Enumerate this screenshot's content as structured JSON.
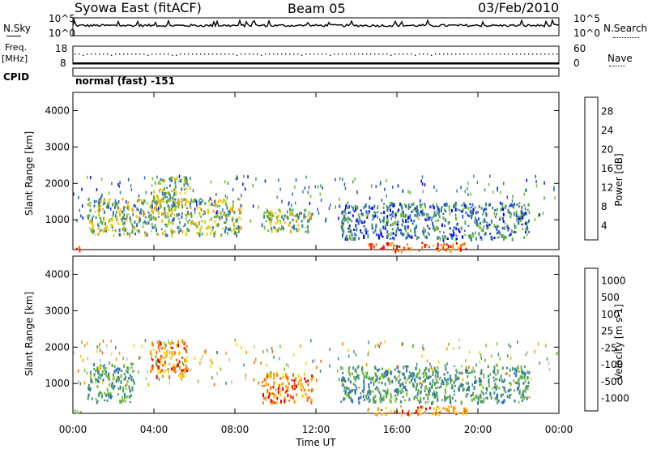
{
  "header": {
    "station": "Syowa East (fitACF)",
    "beam": "Beam 05",
    "date": "03/Feb/2010"
  },
  "summary": {
    "nsky_label": "N.Sky",
    "nsearch_label": "N.Search",
    "nsky_ticks": [
      "10^5",
      "10^0"
    ],
    "freq_label": "Freq.",
    "freq_unit": "[MHz]",
    "freq_ticks": [
      "18",
      "8"
    ],
    "nave_label": "Nave",
    "nave_ticks": [
      "60",
      "0"
    ],
    "cpid_label": "CPID",
    "cpid_value": "normal (fast) -151"
  },
  "chart_data": [
    {
      "type": "heatmap",
      "panel": "power",
      "ylabel": "Slant Range [km]",
      "ylim": [
        180,
        4500
      ],
      "yticks": [
        "4000",
        "3000",
        "2000",
        "1000"
      ],
      "xlim": [
        "00:00",
        "24:00"
      ],
      "colorbar_label": "Power [dB]",
      "colorbar_ticks": [
        "28",
        "24",
        "20",
        "16",
        "12",
        "8",
        "4"
      ],
      "colorbar_colors": [
        "#0000ff",
        "#2050e0",
        "#2e6db5",
        "#3c8a86",
        "#46a04a",
        "#6fc12a",
        "#c8d800",
        "#ffc400",
        "#ff9a00",
        "#ff6a00",
        "#ff2a00",
        "#e60000"
      ],
      "echo_regions": [
        {
          "t_start": 0.0,
          "t_end": 0.5,
          "r_min": 180,
          "r_max": 300,
          "level": "high"
        },
        {
          "t_start": 0.7,
          "t_end": 8.3,
          "r_min": 600,
          "r_max": 1600,
          "level": "medium"
        },
        {
          "t_start": 3.8,
          "t_end": 5.6,
          "r_min": 1300,
          "r_max": 2200,
          "level": "medium"
        },
        {
          "t_start": 9.3,
          "t_end": 11.8,
          "r_min": 700,
          "r_max": 1300,
          "level": "medium"
        },
        {
          "t_start": 13.2,
          "t_end": 22.5,
          "r_min": 500,
          "r_max": 1500,
          "level": "low"
        },
        {
          "t_start": 14.5,
          "t_end": 19.5,
          "r_min": 180,
          "r_max": 400,
          "level": "high"
        }
      ]
    },
    {
      "type": "heatmap",
      "panel": "velocity",
      "ylabel": "Slant Range [km]",
      "ylim": [
        180,
        4500
      ],
      "yticks": [
        "4000",
        "3000",
        "2000",
        "1000"
      ],
      "xlim": [
        "00:00",
        "24:00"
      ],
      "xlabel": "Time UT",
      "xticks": [
        "00:00",
        "04:00",
        "08:00",
        "12:00",
        "16:00",
        "20:00",
        "00:00"
      ],
      "colorbar_label": "Velocity [m s-1]",
      "colorbar_ticks": [
        "1000",
        "500",
        "100",
        "25",
        "-25",
        "-100",
        "-500",
        "-1000"
      ],
      "colorbar_colors": [
        "#1f3fbf",
        "#2e6db5",
        "#3c8a86",
        "#46a04a",
        "#6fc12a",
        "#b8b8b8",
        "#ffd000",
        "#ff9a00",
        "#ff6a00",
        "#e60000"
      ],
      "echo_regions": [
        {
          "t_start": 0.0,
          "t_end": 0.5,
          "r_min": 180,
          "r_max": 300,
          "level": "neutral"
        },
        {
          "t_start": 0.7,
          "t_end": 3.0,
          "r_min": 500,
          "r_max": 1600,
          "level": "toward"
        },
        {
          "t_start": 3.8,
          "t_end": 5.6,
          "r_min": 1200,
          "r_max": 2200,
          "level": "away"
        },
        {
          "t_start": 9.3,
          "t_end": 11.8,
          "r_min": 500,
          "r_max": 1300,
          "level": "away"
        },
        {
          "t_start": 13.2,
          "t_end": 22.5,
          "r_min": 500,
          "r_max": 1500,
          "level": "toward"
        },
        {
          "t_start": 14.5,
          "t_end": 19.5,
          "r_min": 180,
          "r_max": 400,
          "level": "away"
        }
      ]
    }
  ]
}
